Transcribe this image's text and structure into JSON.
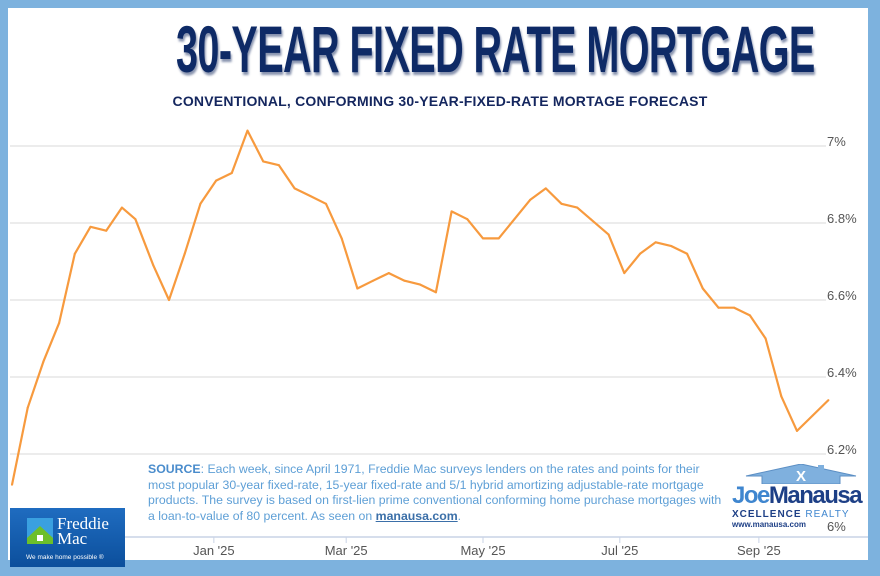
{
  "title": "30-YEAR FIXED RATE MORTGAGE",
  "subtitle": "CONVENTIONAL, CONFORMING 30-YEAR-FIXED-RATE MORTAGE FORECAST",
  "source": {
    "label": "SOURCE",
    "text": ": Each week, since April 1971, Freddie Mac surveys lenders on the rates and points for their most popular 30-year fixed-rate, 15-year fixed-rate and 5/1 hybrid amortizing adjustable-rate mortgage products. The survey is based on first-lien prime conventional conforming home purchase mortgages with a loan-to-value of 80 percent. As seen on ",
    "link": "manausa.com",
    "end": "."
  },
  "logos": {
    "freddie_mac": {
      "name_line1": "Freddie",
      "name_line2": "Mac",
      "tagline": "We make home possible ®"
    },
    "joe_manausa": {
      "name_a": "Joe",
      "name_b": "Manausa",
      "sub_a": "XCELLENCE",
      "sub_b": " REALTY",
      "url": "www.manausa.com"
    }
  },
  "colors": {
    "line": "#f79a3e",
    "title": "#0e2a66",
    "frame": "#7db2de",
    "grid": "#d9d9d9"
  },
  "chart_data": {
    "type": "line",
    "title": "30-YEAR FIXED RATE MORTGAGE",
    "subtitle": "CONVENTIONAL, CONFORMING 30-YEAR-FIXED-RATE MORTAGE FORECAST",
    "x": [
      "2024-10-03",
      "2024-10-10",
      "2024-10-17",
      "2024-10-24",
      "2024-10-31",
      "2024-11-07",
      "2024-11-14",
      "2024-11-21",
      "2024-11-27",
      "2024-12-05",
      "2024-12-12",
      "2024-12-19",
      "2024-12-26",
      "2025-01-02",
      "2025-01-09",
      "2025-01-16",
      "2025-01-23",
      "2025-01-30",
      "2025-02-06",
      "2025-02-13",
      "2025-02-20",
      "2025-02-27",
      "2025-03-06",
      "2025-03-13",
      "2025-03-20",
      "2025-03-27",
      "2025-04-03",
      "2025-04-10",
      "2025-04-17",
      "2025-04-24",
      "2025-05-01",
      "2025-05-08",
      "2025-05-15",
      "2025-05-22",
      "2025-05-29",
      "2025-06-05",
      "2025-06-12",
      "2025-06-18",
      "2025-06-26",
      "2025-07-03",
      "2025-07-10",
      "2025-07-17",
      "2025-07-24",
      "2025-07-31",
      "2025-08-07",
      "2025-08-14",
      "2025-08-21",
      "2025-08-28",
      "2025-09-04",
      "2025-09-11",
      "2025-09-18",
      "2025-09-25",
      "2025-10-02"
    ],
    "values": [
      6.12,
      6.32,
      6.44,
      6.54,
      6.72,
      6.79,
      6.78,
      6.84,
      6.81,
      6.69,
      6.6,
      6.72,
      6.85,
      6.91,
      6.93,
      7.04,
      6.96,
      6.95,
      6.89,
      6.87,
      6.85,
      6.76,
      6.63,
      6.65,
      6.67,
      6.65,
      6.64,
      6.62,
      6.83,
      6.81,
      6.76,
      6.76,
      6.81,
      6.86,
      6.89,
      6.85,
      6.84,
      6.81,
      6.77,
      6.67,
      6.72,
      6.75,
      6.74,
      6.72,
      6.63,
      6.58,
      6.58,
      6.56,
      6.5,
      6.35,
      6.26,
      6.3,
      6.34
    ],
    "x_ticks": [
      {
        "date": "2025-01-01",
        "label": "Jan '25"
      },
      {
        "date": "2025-03-01",
        "label": "Mar '25"
      },
      {
        "date": "2025-05-01",
        "label": "May '25"
      },
      {
        "date": "2025-07-01",
        "label": "Jul '25"
      },
      {
        "date": "2025-09-01",
        "label": "Sep '25"
      }
    ],
    "y_ticks": [
      {
        "value": 7.0,
        "label": "7%"
      },
      {
        "value": 6.8,
        "label": "6.8%"
      },
      {
        "value": 6.6,
        "label": "6.6%"
      },
      {
        "value": 6.4,
        "label": "6.4%"
      },
      {
        "value": 6.2,
        "label": "6.2%"
      },
      {
        "value": 6.0,
        "label": "6%"
      }
    ],
    "ylim": [
      6.0,
      7.1
    ],
    "y_axis_side": "right",
    "grid": true,
    "legend": "none",
    "xlabel": "",
    "ylabel": ""
  }
}
